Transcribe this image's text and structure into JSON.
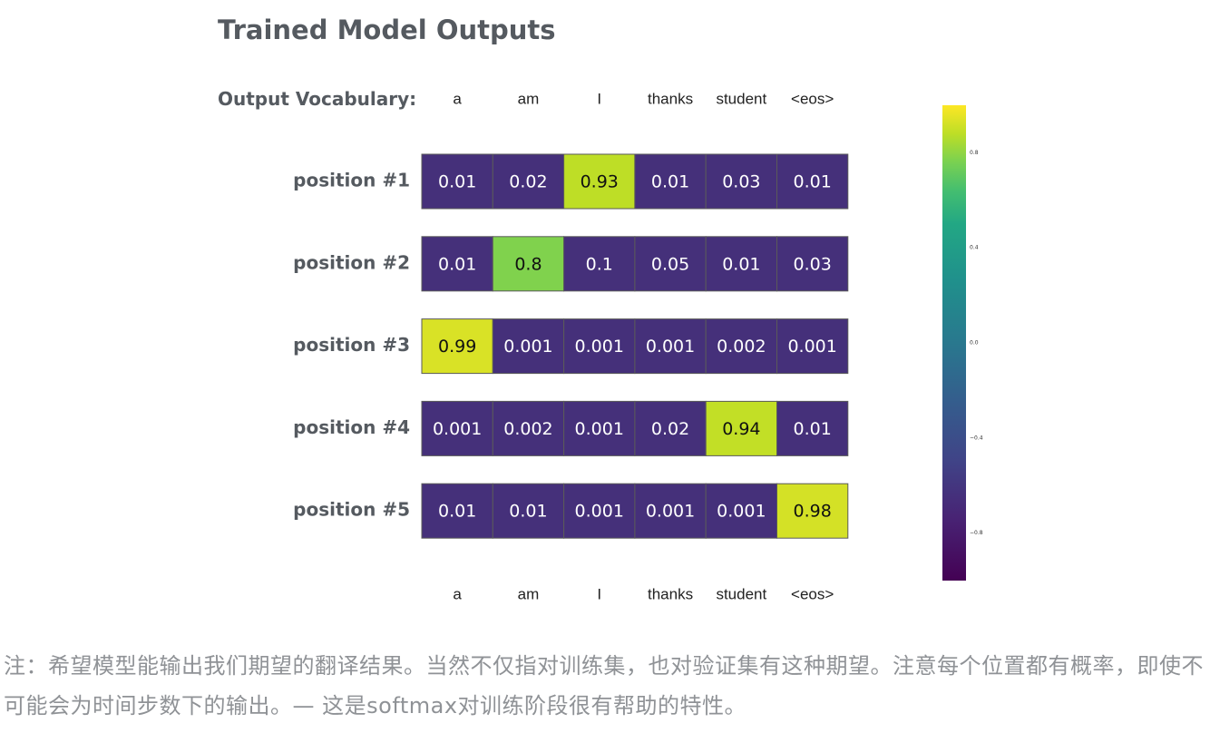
{
  "header": {
    "title": "Trained Model Outputs",
    "vocab_label": "Output Vocabulary:"
  },
  "chart_data": {
    "type": "heatmap",
    "title": "Trained Model Outputs",
    "columns": [
      "a",
      "am",
      "I",
      "thanks",
      "student",
      "<eos>"
    ],
    "rows": [
      "position #1",
      "position #2",
      "position #3",
      "position #4",
      "position #5"
    ],
    "values": [
      [
        0.01,
        0.02,
        0.93,
        0.01,
        0.03,
        0.01
      ],
      [
        0.01,
        0.8,
        0.1,
        0.05,
        0.01,
        0.03
      ],
      [
        0.99,
        0.001,
        0.001,
        0.001,
        0.002,
        0.001
      ],
      [
        0.001,
        0.002,
        0.001,
        0.02,
        0.94,
        0.01
      ],
      [
        0.01,
        0.01,
        0.001,
        0.001,
        0.001,
        0.98
      ]
    ],
    "cell_labels": [
      [
        "0.01",
        "0.02",
        "0.93",
        "0.01",
        "0.03",
        "0.01"
      ],
      [
        "0.01",
        "0.8",
        "0.1",
        "0.05",
        "0.01",
        "0.03"
      ],
      [
        "0.99",
        "0.001",
        "0.001",
        "0.001",
        "0.002",
        "0.001"
      ],
      [
        "0.001",
        "0.002",
        "0.001",
        "0.02",
        "0.94",
        "0.01"
      ],
      [
        "0.01",
        "0.01",
        "0.001",
        "0.001",
        "0.001",
        "0.98"
      ]
    ],
    "colorscale": "viridis",
    "colorbar": {
      "range": [
        -1,
        1
      ],
      "ticks": [
        "0.8",
        "0.4",
        "0.0",
        "−0.4",
        "−0.8"
      ],
      "tick_values": [
        0.8,
        0.4,
        0.0,
        -0.4,
        -0.8
      ]
    }
  },
  "note": "注：希望模型能输出我们期望的翻译结果。当然不仅指对训练集，也对验证集有这种期望。注意每个位置都有概率，即使不可能会为时间步数下的输出。— 这是softmax对训练阶段很有帮助的特性。"
}
